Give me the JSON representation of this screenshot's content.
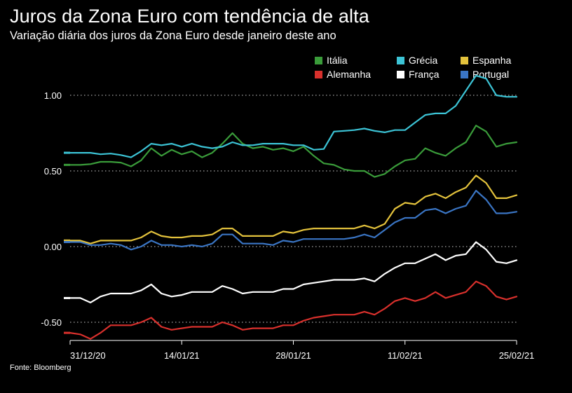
{
  "title": "Juros da Zona Euro com tendência de alta",
  "subtitle": "Variação diária dos juros da Zona Euro desde janeiro deste ano",
  "source": "Fonte: Bloomberg",
  "chart_data": {
    "type": "line",
    "title": "Juros da Zona Euro com tendência de alta",
    "xlabel": "",
    "ylabel": "",
    "ylim": [
      -0.6,
      1.15
    ],
    "yticks": [
      -0.5,
      0.0,
      0.5,
      1.0
    ],
    "ytick_labels": [
      "-0.50",
      "0.00",
      "0.50",
      "1.00"
    ],
    "xtick_labels": [
      "31/12/20",
      "14/01/21",
      "28/01/21",
      "11/02/21",
      "25/02/21"
    ],
    "xtick_index": [
      0,
      14,
      28,
      42,
      56
    ],
    "grid": "horizontal dotted",
    "legend_position": "top-right",
    "series": [
      {
        "name": "Itália",
        "color": "#3a9c3a",
        "values": [
          0.54,
          0.54,
          0.545,
          0.56,
          0.56,
          0.555,
          0.53,
          0.57,
          0.65,
          0.6,
          0.64,
          0.61,
          0.63,
          0.59,
          0.62,
          0.68,
          0.75,
          0.68,
          0.65,
          0.66,
          0.64,
          0.65,
          0.63,
          0.66,
          0.6,
          0.55,
          0.54,
          0.51,
          0.5,
          0.5,
          0.46,
          0.48,
          0.53,
          0.57,
          0.58,
          0.65,
          0.62,
          0.6,
          0.65,
          0.69,
          0.8,
          0.76,
          0.66,
          0.68,
          0.69
        ]
      },
      {
        "name": "Grécia",
        "color": "#3cc4d6",
        "values": [
          0.62,
          0.62,
          0.62,
          0.61,
          0.615,
          0.605,
          0.59,
          0.63,
          0.68,
          0.67,
          0.68,
          0.66,
          0.68,
          0.66,
          0.65,
          0.66,
          0.69,
          0.67,
          0.67,
          0.68,
          0.68,
          0.68,
          0.67,
          0.67,
          0.64,
          0.645,
          0.76,
          0.765,
          0.77,
          0.78,
          0.765,
          0.755,
          0.77,
          0.77,
          0.82,
          0.87,
          0.88,
          0.88,
          0.93,
          1.03,
          1.13,
          1.11,
          1.0,
          0.99,
          0.99
        ]
      },
      {
        "name": "Espanha",
        "color": "#e3c23c",
        "values": [
          0.04,
          0.04,
          0.02,
          0.04,
          0.04,
          0.04,
          0.04,
          0.06,
          0.1,
          0.07,
          0.06,
          0.06,
          0.07,
          0.07,
          0.08,
          0.12,
          0.12,
          0.07,
          0.07,
          0.07,
          0.07,
          0.1,
          0.09,
          0.11,
          0.12,
          0.12,
          0.12,
          0.12,
          0.12,
          0.14,
          0.12,
          0.15,
          0.25,
          0.29,
          0.28,
          0.33,
          0.35,
          0.32,
          0.36,
          0.39,
          0.47,
          0.42,
          0.32,
          0.32,
          0.34
        ]
      },
      {
        "name": "Alemanha",
        "color": "#d8302c",
        "values": [
          -0.57,
          -0.58,
          -0.61,
          -0.57,
          -0.52,
          -0.52,
          -0.52,
          -0.5,
          -0.47,
          -0.53,
          -0.55,
          -0.54,
          -0.53,
          -0.53,
          -0.53,
          -0.5,
          -0.52,
          -0.55,
          -0.54,
          -0.54,
          -0.54,
          -0.52,
          -0.52,
          -0.49,
          -0.47,
          -0.46,
          -0.45,
          -0.45,
          -0.45,
          -0.43,
          -0.45,
          -0.41,
          -0.36,
          -0.34,
          -0.36,
          -0.34,
          -0.3,
          -0.34,
          -0.32,
          -0.3,
          -0.23,
          -0.26,
          -0.33,
          -0.35,
          -0.33
        ]
      },
      {
        "name": "França",
        "color": "#ffffff",
        "values": [
          -0.34,
          -0.34,
          -0.37,
          -0.33,
          -0.31,
          -0.31,
          -0.31,
          -0.29,
          -0.25,
          -0.31,
          -0.33,
          -0.32,
          -0.3,
          -0.3,
          -0.3,
          -0.26,
          -0.28,
          -0.31,
          -0.3,
          -0.3,
          -0.3,
          -0.28,
          -0.28,
          -0.25,
          -0.24,
          -0.23,
          -0.22,
          -0.22,
          -0.22,
          -0.21,
          -0.23,
          -0.18,
          -0.14,
          -0.11,
          -0.11,
          -0.08,
          -0.05,
          -0.09,
          -0.06,
          -0.05,
          0.03,
          -0.02,
          -0.1,
          -0.11,
          -0.09
        ]
      },
      {
        "name": "Portugal",
        "color": "#3a75c4",
        "values": [
          0.03,
          0.03,
          0.01,
          0.01,
          0.02,
          0.01,
          -0.02,
          0.0,
          0.04,
          0.01,
          0.01,
          0.0,
          0.01,
          0.0,
          0.02,
          0.08,
          0.08,
          0.02,
          0.02,
          0.02,
          0.01,
          0.04,
          0.03,
          0.05,
          0.05,
          0.05,
          0.05,
          0.05,
          0.06,
          0.08,
          0.06,
          0.11,
          0.16,
          0.19,
          0.19,
          0.24,
          0.25,
          0.22,
          0.25,
          0.27,
          0.37,
          0.31,
          0.22,
          0.22,
          0.23
        ]
      }
    ]
  }
}
